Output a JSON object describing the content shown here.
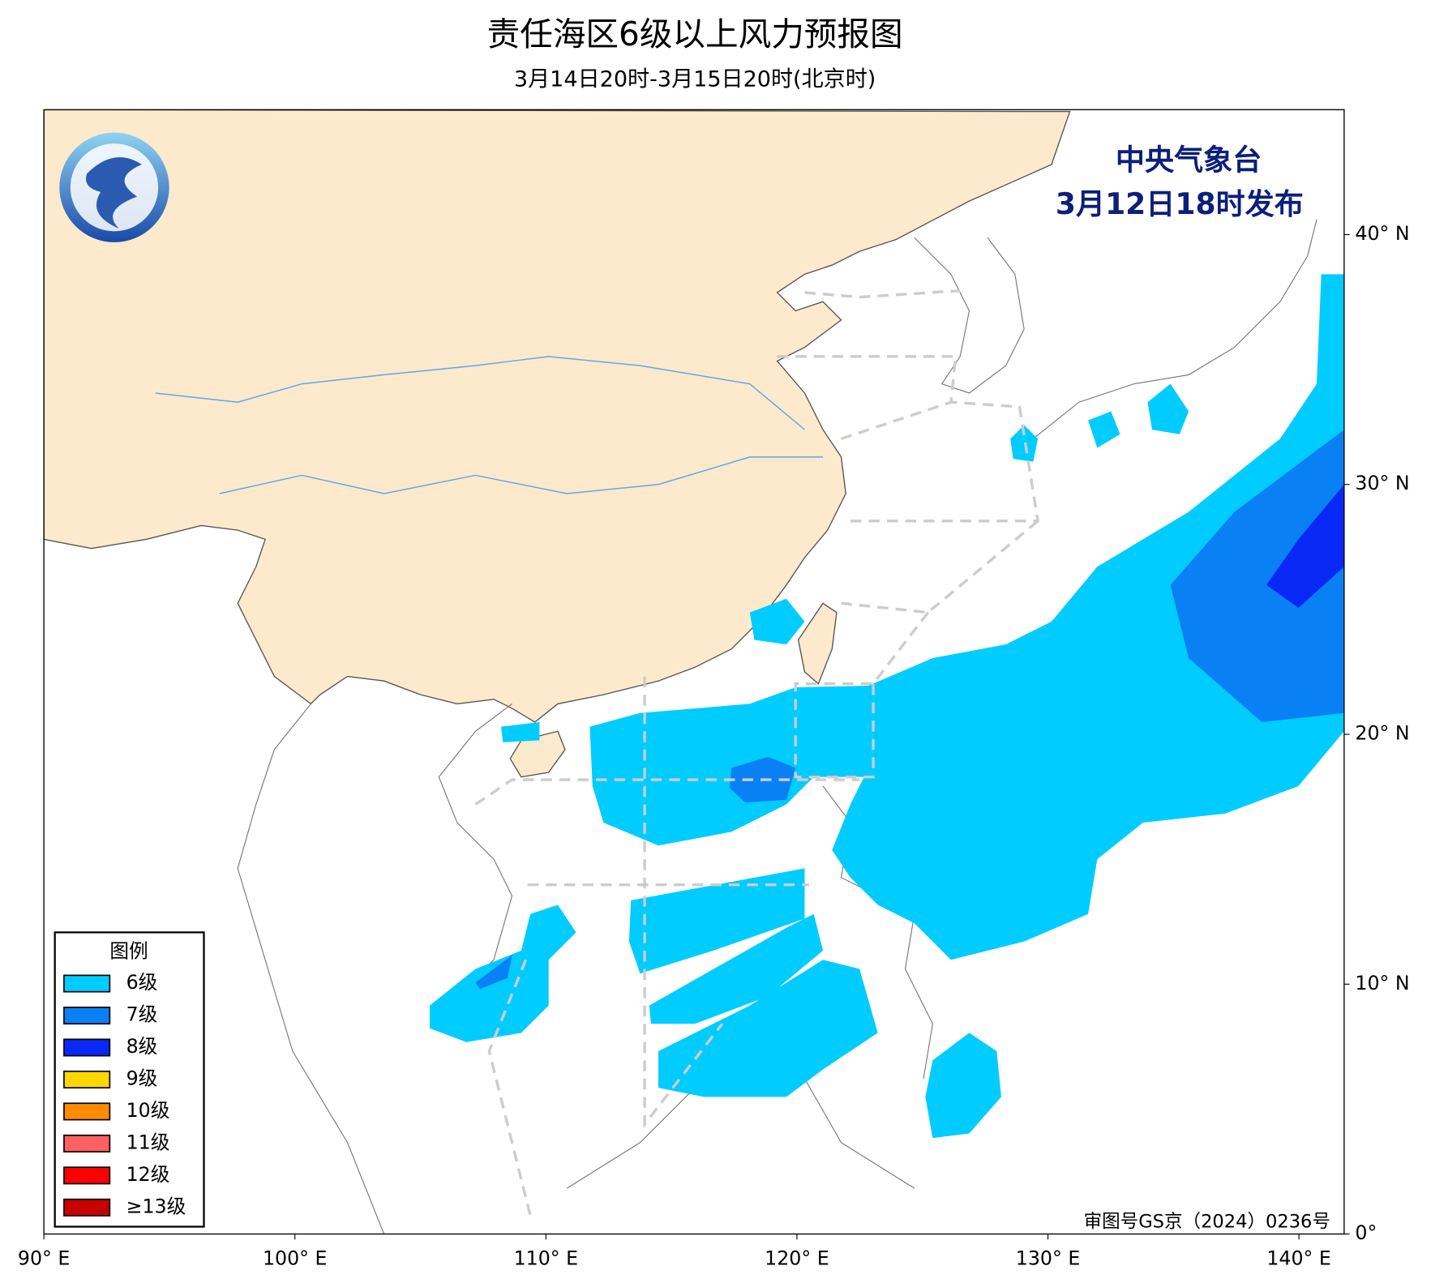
{
  "header": {
    "title": "责任海区6级以上风力预报图",
    "subtitle": "3月14日20时-3月15日20时(北京时)"
  },
  "issuer": {
    "agency": "中央气象台",
    "issued": "3月12日18时发布"
  },
  "map": {
    "lonlim": [
      90,
      141.8
    ],
    "latlim": [
      0,
      45
    ],
    "lon_ticks": [
      {
        "value": 90,
        "label": "90° E"
      },
      {
        "value": 100,
        "label": "100° E"
      },
      {
        "value": 110,
        "label": "110° E"
      },
      {
        "value": 120,
        "label": "120° E"
      },
      {
        "value": 130,
        "label": "130° E"
      },
      {
        "value": 140,
        "label": "140° E"
      }
    ],
    "lat_ticks": [
      {
        "value": 0,
        "label": "0°"
      },
      {
        "value": 10,
        "label": "10° N"
      },
      {
        "value": 20,
        "label": "20° N"
      },
      {
        "value": 30,
        "label": "30° N"
      },
      {
        "value": 40,
        "label": "40° N"
      }
    ]
  },
  "legend": {
    "title": "图例",
    "items": [
      {
        "label": "6级",
        "color": "#00ccff"
      },
      {
        "label": "7级",
        "color": "#0a80f5"
      },
      {
        "label": "8级",
        "color": "#0a28f5"
      },
      {
        "label": "9级",
        "color": "#ffd700"
      },
      {
        "label": "10级",
        "color": "#ff8c00"
      },
      {
        "label": "11级",
        "color": "#ff6060"
      },
      {
        "label": "12级",
        "color": "#ff0000"
      },
      {
        "label": "≥13级",
        "color": "#c80000"
      }
    ]
  },
  "approval": "审图号GS京（2024）0236号"
}
